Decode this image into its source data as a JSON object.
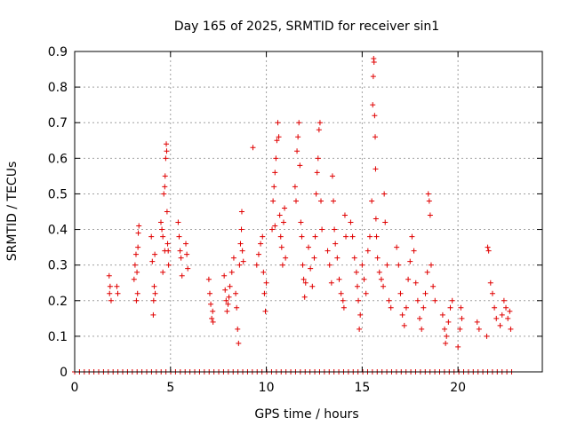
{
  "chart_data": {
    "type": "scatter",
    "title": "Day 165 of 2025, SRMTID for receiver sin1",
    "xlabel": "GPS time / hours",
    "ylabel": "SRMTID / TECUs",
    "xlim": [
      0,
      24.4
    ],
    "ylim": [
      0,
      0.9
    ],
    "xticks": [
      0,
      5,
      10,
      15,
      20
    ],
    "yticks": [
      0,
      0.1,
      0.2,
      0.3,
      0.4,
      0.5,
      0.6,
      0.7,
      0.8,
      0.9
    ],
    "xtick_labels": [
      "0",
      "5",
      "10",
      "15",
      "20"
    ],
    "ytick_labels": [
      "0",
      "0.1",
      "0.2",
      "0.3",
      "0.4",
      "0.5",
      "0.6",
      "0.7",
      "0.8",
      "0.9"
    ],
    "grid": true,
    "marker": "+",
    "color": "#e00000",
    "series": [
      {
        "name": "SRMTID",
        "points": [
          [
            1.8,
            0.27
          ],
          [
            1.85,
            0.24
          ],
          [
            1.9,
            0.2
          ],
          [
            1.82,
            0.22
          ],
          [
            2.2,
            0.24
          ],
          [
            2.25,
            0.22
          ],
          [
            3.1,
            0.26
          ],
          [
            3.15,
            0.3
          ],
          [
            3.2,
            0.33
          ],
          [
            3.25,
            0.28
          ],
          [
            3.3,
            0.35
          ],
          [
            3.32,
            0.39
          ],
          [
            3.35,
            0.41
          ],
          [
            3.28,
            0.22
          ],
          [
            3.22,
            0.2
          ],
          [
            4.0,
            0.38
          ],
          [
            4.05,
            0.31
          ],
          [
            4.1,
            0.16
          ],
          [
            4.12,
            0.2
          ],
          [
            4.15,
            0.24
          ],
          [
            4.2,
            0.22
          ],
          [
            4.18,
            0.33
          ],
          [
            4.5,
            0.42
          ],
          [
            4.55,
            0.4
          ],
          [
            4.6,
            0.38
          ],
          [
            4.65,
            0.5
          ],
          [
            4.7,
            0.52
          ],
          [
            4.72,
            0.55
          ],
          [
            4.75,
            0.6
          ],
          [
            4.78,
            0.64
          ],
          [
            4.8,
            0.62
          ],
          [
            4.82,
            0.45
          ],
          [
            4.85,
            0.36
          ],
          [
            4.88,
            0.34
          ],
          [
            4.9,
            0.3
          ],
          [
            4.7,
            0.34
          ],
          [
            4.6,
            0.28
          ],
          [
            5.4,
            0.42
          ],
          [
            5.45,
            0.38
          ],
          [
            5.5,
            0.34
          ],
          [
            5.55,
            0.32
          ],
          [
            5.6,
            0.27
          ],
          [
            5.8,
            0.36
          ],
          [
            5.85,
            0.33
          ],
          [
            5.9,
            0.29
          ],
          [
            7.0,
            0.26
          ],
          [
            7.05,
            0.22
          ],
          [
            7.1,
            0.19
          ],
          [
            7.15,
            0.15
          ],
          [
            7.2,
            0.17
          ],
          [
            7.22,
            0.14
          ],
          [
            7.8,
            0.27
          ],
          [
            7.85,
            0.23
          ],
          [
            7.9,
            0.2
          ],
          [
            7.95,
            0.17
          ],
          [
            8.0,
            0.19
          ],
          [
            8.05,
            0.21
          ],
          [
            8.1,
            0.24
          ],
          [
            8.2,
            0.28
          ],
          [
            8.3,
            0.32
          ],
          [
            8.4,
            0.22
          ],
          [
            8.45,
            0.18
          ],
          [
            8.5,
            0.12
          ],
          [
            8.55,
            0.08
          ],
          [
            8.6,
            0.3
          ],
          [
            8.65,
            0.36
          ],
          [
            8.7,
            0.4
          ],
          [
            8.72,
            0.45
          ],
          [
            8.75,
            0.34
          ],
          [
            8.8,
            0.31
          ],
          [
            9.3,
            0.63
          ],
          [
            9.5,
            0.3
          ],
          [
            9.6,
            0.33
          ],
          [
            9.7,
            0.36
          ],
          [
            9.8,
            0.38
          ],
          [
            9.85,
            0.28
          ],
          [
            9.9,
            0.22
          ],
          [
            9.95,
            0.17
          ],
          [
            10.0,
            0.25
          ],
          [
            10.3,
            0.4
          ],
          [
            10.35,
            0.48
          ],
          [
            10.4,
            0.52
          ],
          [
            10.45,
            0.56
          ],
          [
            10.5,
            0.6
          ],
          [
            10.55,
            0.65
          ],
          [
            10.6,
            0.7
          ],
          [
            10.65,
            0.66
          ],
          [
            10.7,
            0.44
          ],
          [
            10.75,
            0.38
          ],
          [
            10.8,
            0.35
          ],
          [
            10.85,
            0.3
          ],
          [
            10.9,
            0.42
          ],
          [
            10.95,
            0.46
          ],
          [
            11.0,
            0.32
          ],
          [
            10.45,
            0.41
          ],
          [
            11.5,
            0.52
          ],
          [
            11.55,
            0.48
          ],
          [
            11.6,
            0.62
          ],
          [
            11.65,
            0.66
          ],
          [
            11.7,
            0.7
          ],
          [
            11.75,
            0.58
          ],
          [
            11.8,
            0.42
          ],
          [
            11.85,
            0.38
          ],
          [
            11.9,
            0.3
          ],
          [
            11.95,
            0.26
          ],
          [
            12.0,
            0.21
          ],
          [
            12.05,
            0.25
          ],
          [
            12.2,
            0.35
          ],
          [
            12.3,
            0.29
          ],
          [
            12.4,
            0.24
          ],
          [
            12.5,
            0.32
          ],
          [
            12.55,
            0.38
          ],
          [
            12.6,
            0.5
          ],
          [
            12.65,
            0.56
          ],
          [
            12.7,
            0.6
          ],
          [
            12.75,
            0.68
          ],
          [
            12.8,
            0.7
          ],
          [
            12.85,
            0.48
          ],
          [
            12.9,
            0.4
          ],
          [
            13.2,
            0.34
          ],
          [
            13.3,
            0.3
          ],
          [
            13.4,
            0.25
          ],
          [
            13.45,
            0.55
          ],
          [
            13.5,
            0.48
          ],
          [
            13.55,
            0.4
          ],
          [
            13.6,
            0.36
          ],
          [
            13.7,
            0.32
          ],
          [
            13.8,
            0.26
          ],
          [
            13.9,
            0.22
          ],
          [
            14.0,
            0.2
          ],
          [
            14.05,
            0.18
          ],
          [
            14.1,
            0.44
          ],
          [
            14.15,
            0.38
          ],
          [
            14.4,
            0.42
          ],
          [
            14.5,
            0.38
          ],
          [
            14.6,
            0.32
          ],
          [
            14.7,
            0.28
          ],
          [
            14.75,
            0.24
          ],
          [
            14.8,
            0.2
          ],
          [
            14.85,
            0.12
          ],
          [
            14.9,
            0.16
          ],
          [
            15.0,
            0.3
          ],
          [
            15.1,
            0.26
          ],
          [
            15.2,
            0.22
          ],
          [
            15.3,
            0.34
          ],
          [
            15.4,
            0.38
          ],
          [
            15.5,
            0.48
          ],
          [
            15.55,
            0.75
          ],
          [
            15.58,
            0.83
          ],
          [
            15.6,
            0.88
          ],
          [
            15.62,
            0.87
          ],
          [
            15.65,
            0.72
          ],
          [
            15.68,
            0.66
          ],
          [
            15.7,
            0.57
          ],
          [
            15.72,
            0.43
          ],
          [
            15.75,
            0.38
          ],
          [
            15.8,
            0.32
          ],
          [
            15.9,
            0.28
          ],
          [
            16.0,
            0.26
          ],
          [
            16.1,
            0.24
          ],
          [
            16.15,
            0.5
          ],
          [
            16.2,
            0.42
          ],
          [
            16.3,
            0.3
          ],
          [
            16.4,
            0.2
          ],
          [
            16.5,
            0.18
          ],
          [
            16.8,
            0.35
          ],
          [
            16.9,
            0.3
          ],
          [
            17.0,
            0.22
          ],
          [
            17.1,
            0.16
          ],
          [
            17.2,
            0.13
          ],
          [
            17.3,
            0.18
          ],
          [
            17.4,
            0.26
          ],
          [
            17.5,
            0.31
          ],
          [
            17.6,
            0.38
          ],
          [
            17.7,
            0.34
          ],
          [
            17.8,
            0.25
          ],
          [
            17.9,
            0.2
          ],
          [
            18.0,
            0.15
          ],
          [
            18.1,
            0.12
          ],
          [
            18.2,
            0.18
          ],
          [
            18.3,
            0.22
          ],
          [
            18.4,
            0.28
          ],
          [
            18.45,
            0.5
          ],
          [
            18.5,
            0.48
          ],
          [
            18.55,
            0.44
          ],
          [
            18.6,
            0.3
          ],
          [
            18.7,
            0.24
          ],
          [
            18.8,
            0.2
          ],
          [
            19.2,
            0.16
          ],
          [
            19.3,
            0.12
          ],
          [
            19.35,
            0.08
          ],
          [
            19.4,
            0.1
          ],
          [
            19.5,
            0.14
          ],
          [
            19.6,
            0.18
          ],
          [
            19.7,
            0.2
          ],
          [
            20.0,
            0.07
          ],
          [
            20.1,
            0.12
          ],
          [
            20.15,
            0.18
          ],
          [
            20.2,
            0.15
          ],
          [
            21.0,
            0.14
          ],
          [
            21.1,
            0.12
          ],
          [
            21.5,
            0.1
          ],
          [
            21.55,
            0.35
          ],
          [
            21.6,
            0.34
          ],
          [
            21.7,
            0.25
          ],
          [
            21.8,
            0.22
          ],
          [
            21.9,
            0.18
          ],
          [
            22.0,
            0.15
          ],
          [
            22.2,
            0.13
          ],
          [
            22.3,
            0.16
          ],
          [
            22.4,
            0.2
          ],
          [
            22.5,
            0.18
          ],
          [
            22.6,
            0.15
          ],
          [
            22.7,
            0.17
          ],
          [
            22.75,
            0.12
          ]
        ]
      }
    ],
    "zero_band": {
      "from": 0.0,
      "to": 22.8,
      "y": 0,
      "count": 92
    }
  }
}
